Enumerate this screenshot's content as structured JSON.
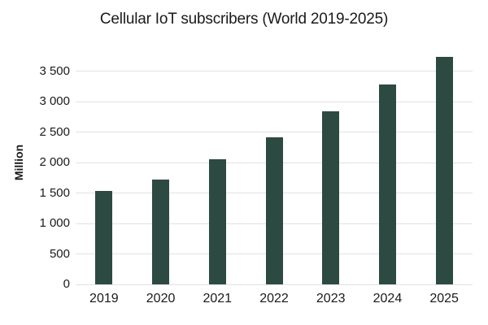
{
  "chart_data": {
    "type": "bar",
    "title": "Cellular IoT subscribers (World 2019-2025)",
    "xlabel": "",
    "ylabel": "Million",
    "categories": [
      "2019",
      "2020",
      "2021",
      "2022",
      "2023",
      "2024",
      "2025"
    ],
    "values": [
      1530,
      1720,
      2060,
      2420,
      2840,
      3280,
      3730
    ],
    "ylim": [
      0,
      3500
    ],
    "ytick_interval": 500,
    "ytick_values": [
      0,
      500,
      1000,
      1500,
      2000,
      2500,
      3000,
      3500
    ],
    "ytick_labels": [
      "0",
      "500",
      "1 000",
      "1 500",
      "2 000",
      "2 500",
      "3 000",
      "3 500"
    ],
    "grid": true,
    "legend": false,
    "bar_color": "#2d4a42",
    "gridline_color": "#e2e2e2",
    "text_color": "#1a1a1a",
    "background_color": "#ffffff"
  }
}
